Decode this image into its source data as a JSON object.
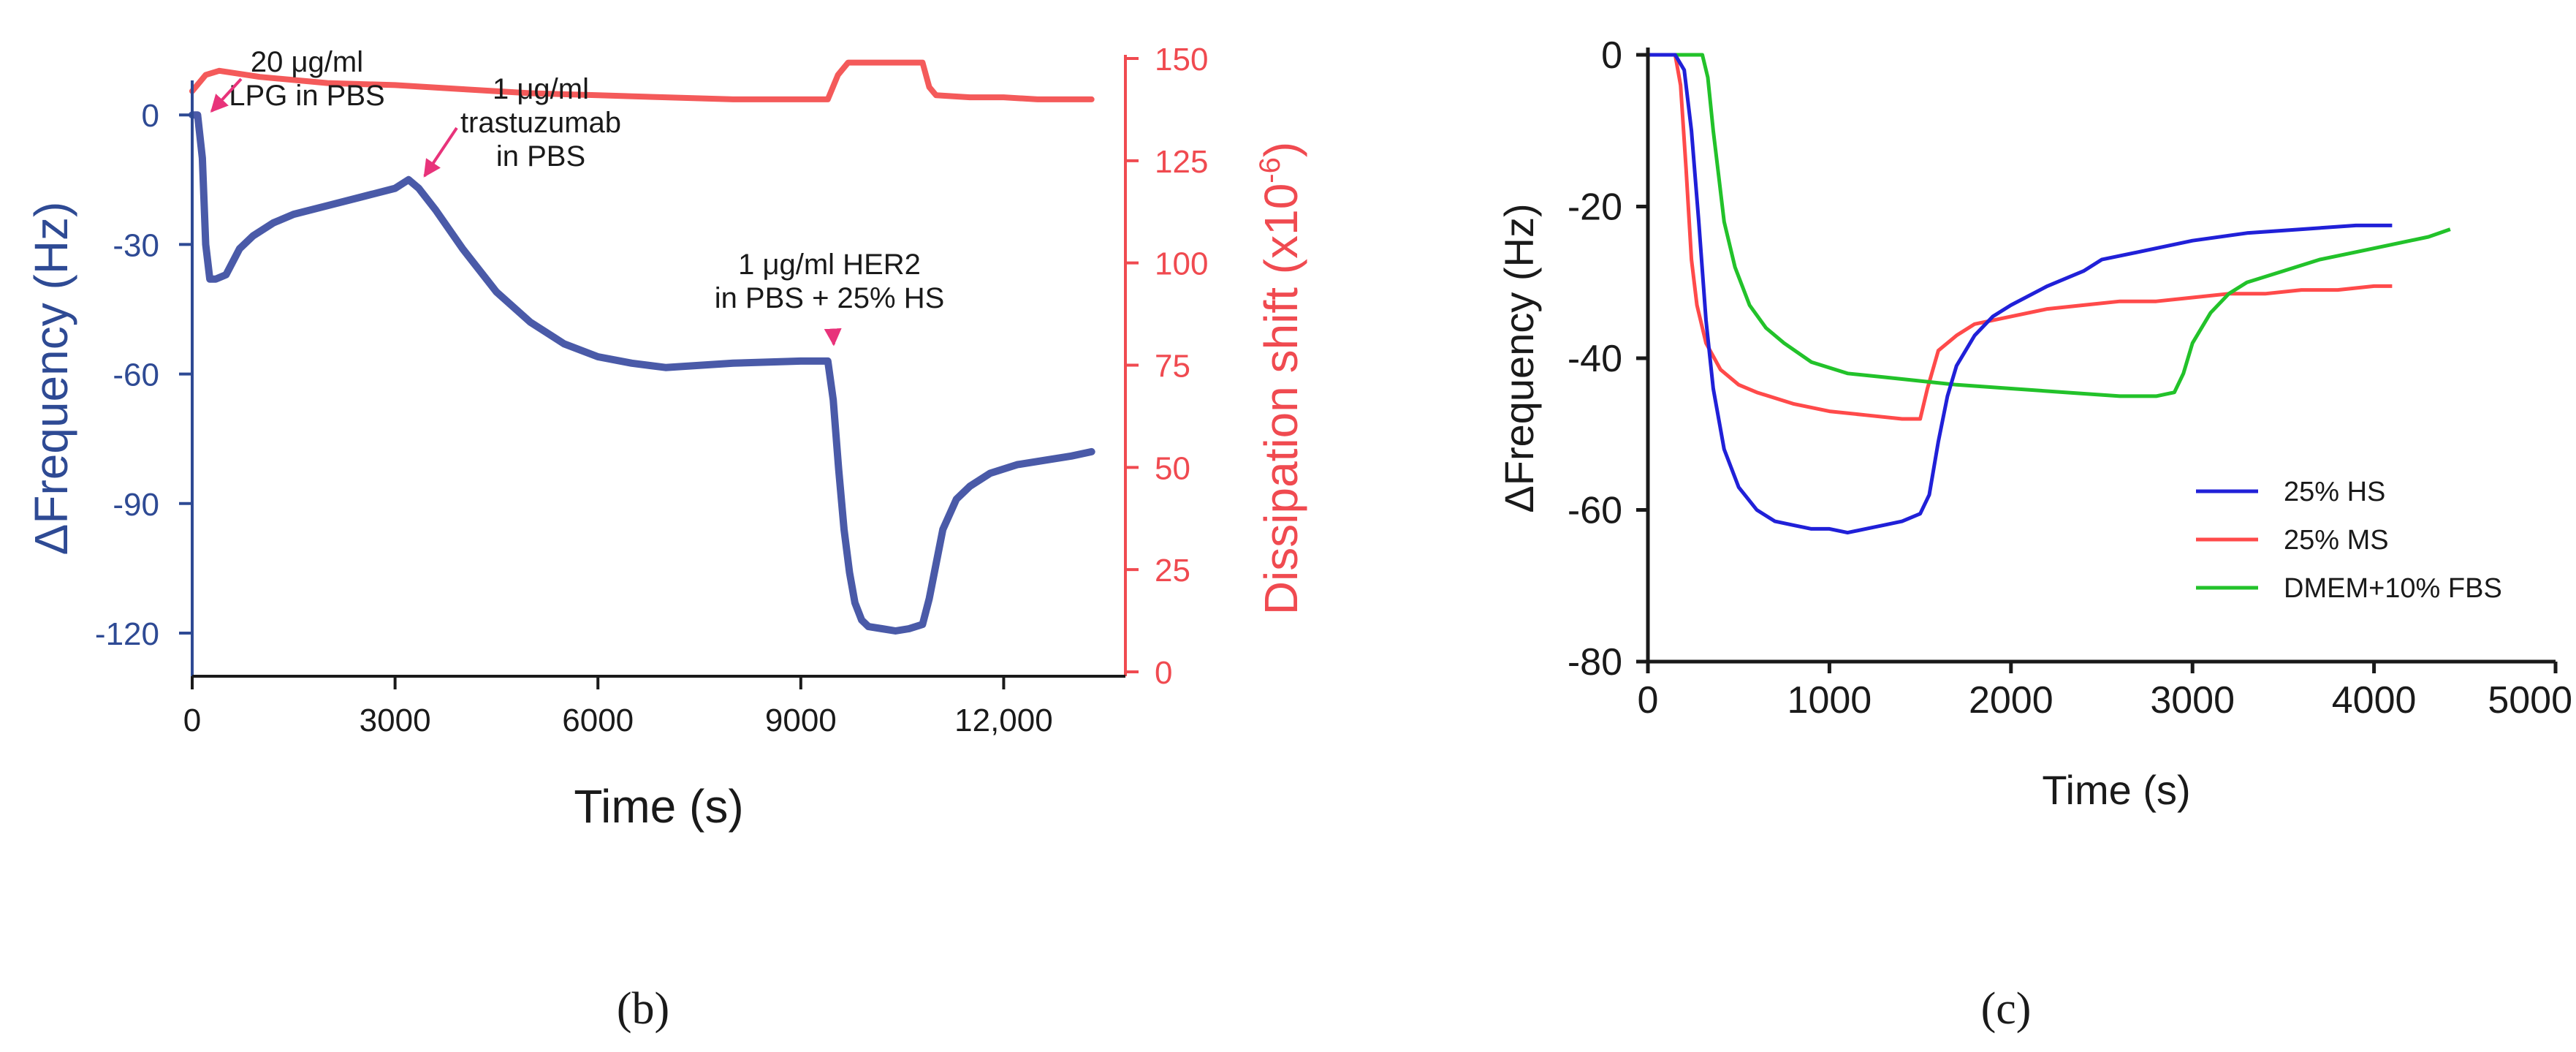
{
  "figure_labels": {
    "b": "(b)",
    "c": "(c)"
  },
  "colors": {
    "blue_axis": "#2e4a94",
    "blue_series": "#4a5aa8",
    "red_axis": "#f04a50",
    "red_series": "#f45a5a",
    "c_blue": "#2020d8",
    "c_red": "#ff4a4a",
    "c_green": "#22c22a",
    "annotation": "#e8337a",
    "axis_dark": "#1a1a1a"
  },
  "chart_data": [
    {
      "id": "b",
      "type": "line",
      "xlabel": "Time (s)",
      "ylabel_left": "ΔFrequency (Hz)",
      "ylabel_right": "Dissipation shift (x10",
      "ylabel_right_exp": "-6",
      "ylabel_right_close": ")",
      "xlim": [
        0,
        13800
      ],
      "ylim_left": [
        -130,
        8
      ],
      "ylim_right": [
        0,
        150
      ],
      "x_ticks": [
        0,
        3000,
        6000,
        9000,
        12000
      ],
      "x_tick_labels": [
        "0",
        "3000",
        "6000",
        "9000",
        "12,000"
      ],
      "y_left_ticks": [
        0,
        -30,
        -60,
        -90,
        -120
      ],
      "y_left_tick_labels": [
        "0",
        "-30",
        "-60",
        "-90",
        "-120"
      ],
      "y_right_ticks": [
        0,
        25,
        50,
        75,
        100,
        125,
        150
      ],
      "y_right_tick_labels": [
        "0",
        "25",
        "50",
        "75",
        "100",
        "125",
        "150"
      ],
      "series": [
        {
          "name": "ΔFrequency",
          "axis": "left",
          "x": [
            0,
            80,
            150,
            200,
            260,
            350,
            500,
            700,
            900,
            1200,
            1500,
            2000,
            2500,
            3000,
            3200,
            3350,
            3600,
            4000,
            4500,
            5000,
            5500,
            6000,
            6500,
            7000,
            8000,
            9000,
            9400,
            9480,
            9560,
            9640,
            9720,
            9800,
            9900,
            10000,
            10200,
            10400,
            10600,
            10800,
            10900,
            11000,
            11100,
            11300,
            11500,
            11800,
            12200,
            12600,
            13000,
            13300
          ],
          "y": [
            0,
            0,
            -10,
            -30,
            -38,
            -38,
            -37,
            -31,
            -28,
            -25,
            -23,
            -21,
            -19,
            -17,
            -15,
            -17,
            -22,
            -31,
            -41,
            -48,
            -53,
            -56,
            -57.5,
            -58.5,
            -57.5,
            -57,
            -57,
            -66,
            -82,
            -96,
            -106,
            -113,
            -117,
            -118.5,
            -119,
            -119.5,
            -119,
            -118,
            -112,
            -104,
            -96,
            -89,
            -86,
            -83,
            -81,
            -80,
            -79,
            -78
          ]
        },
        {
          "name": "Dissipation shift",
          "axis": "right",
          "x": [
            0,
            200,
            400,
            1000,
            2000,
            3000,
            4000,
            5000,
            6000,
            7000,
            8000,
            9000,
            9400,
            9550,
            9700,
            10000,
            10500,
            10800,
            10900,
            11000,
            11500,
            12000,
            12500,
            13000,
            13300
          ],
          "y": [
            142,
            146,
            147,
            145.5,
            144,
            143.5,
            142.5,
            141.5,
            141,
            140.5,
            140,
            140,
            140,
            146,
            149,
            149,
            149,
            149,
            143,
            141,
            140.5,
            140.5,
            140,
            140,
            140
          ]
        }
      ],
      "annotations": [
        {
          "lines": [
            "20 μg/ml",
            "LPG in PBS"
          ],
          "target_x": 200,
          "target_y": -0.5
        },
        {
          "lines": [
            "1 μg/ml",
            "trastuzumab",
            "in PBS"
          ],
          "target_x": 3350,
          "target_y": -15.5
        },
        {
          "lines": [
            "1 μg/ml HER2",
            "in PBS + 25% HS"
          ],
          "target_x": 9400,
          "target_y": -54.5
        }
      ]
    },
    {
      "id": "c",
      "type": "line",
      "xlabel": "Time (s)",
      "ylabel": "ΔFrequency (Hz)",
      "xlim": [
        0,
        5000
      ],
      "ylim": [
        -80,
        0
      ],
      "x_ticks": [
        0,
        1000,
        2000,
        3000,
        4000,
        5000
      ],
      "x_tick_labels": [
        "0",
        "1000",
        "2000",
        "3000",
        "4000",
        "5000"
      ],
      "y_ticks": [
        0,
        -20,
        -40,
        -60,
        -80
      ],
      "y_tick_labels": [
        "0",
        "-20",
        "-40",
        "-60",
        "-80"
      ],
      "legend": "right",
      "series": [
        {
          "name": "25% HS",
          "x": [
            0,
            150,
            200,
            240,
            280,
            320,
            360,
            420,
            500,
            600,
            700,
            800,
            900,
            1000,
            1100,
            1200,
            1300,
            1400,
            1500,
            1550,
            1600,
            1650,
            1700,
            1800,
            1900,
            2000,
            2200,
            2400,
            2500,
            2700,
            3000,
            3300,
            3600,
            3900,
            4100
          ],
          "y": [
            0,
            0,
            -2,
            -10,
            -22,
            -35,
            -44,
            -52,
            -57,
            -60,
            -61.5,
            -62,
            -62.5,
            -62.5,
            -63,
            -62.5,
            -62,
            -61.5,
            -60.5,
            -58,
            -51,
            -45,
            -41,
            -37,
            -34.5,
            -33,
            -30.5,
            -28.5,
            -27,
            -26,
            -24.5,
            -23.5,
            -23,
            -22.5,
            -22.5
          ]
        },
        {
          "name": "25% MS",
          "x": [
            0,
            150,
            180,
            210,
            240,
            270,
            320,
            400,
            500,
            600,
            800,
            1000,
            1200,
            1400,
            1500,
            1540,
            1600,
            1700,
            1800,
            2000,
            2200,
            2400,
            2600,
            2800,
            3000,
            3200,
            3400,
            3600,
            3800,
            4000,
            4100
          ],
          "y": [
            0,
            0,
            -4,
            -15,
            -27,
            -33,
            -38,
            -41.5,
            -43.5,
            -44.5,
            -46,
            -47,
            -47.5,
            -48,
            -48,
            -44,
            -39,
            -37,
            -35.5,
            -34.5,
            -33.5,
            -33,
            -32.5,
            -32.5,
            -32,
            -31.5,
            -31.5,
            -31,
            -31,
            -30.5,
            -30.5
          ]
        },
        {
          "name": "DMEM+10% FBS",
          "x": [
            0,
            300,
            330,
            360,
            390,
            420,
            480,
            560,
            650,
            750,
            900,
            1100,
            1300,
            1500,
            1700,
            2000,
            2300,
            2600,
            2800,
            2900,
            2950,
            3000,
            3100,
            3200,
            3300,
            3500,
            3700,
            3900,
            4100,
            4300,
            4420
          ],
          "y": [
            0,
            0,
            -3,
            -10,
            -16,
            -22,
            -28,
            -33,
            -36,
            -38,
            -40.5,
            -42,
            -42.5,
            -43,
            -43.5,
            -44,
            -44.5,
            -45,
            -45,
            -44.5,
            -42,
            -38,
            -34,
            -31.5,
            -30,
            -28.5,
            -27,
            -26,
            -25,
            -24,
            -23
          ]
        }
      ]
    }
  ]
}
